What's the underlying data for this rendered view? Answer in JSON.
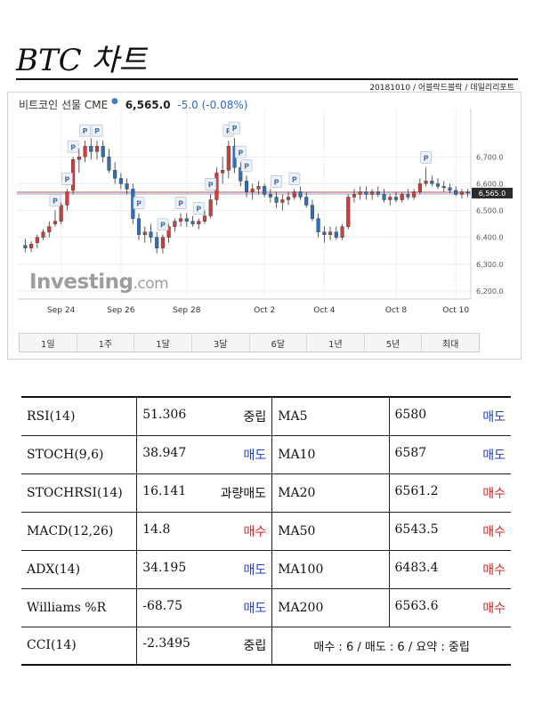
{
  "header": {
    "title": "BTC 차트",
    "meta": "20181010 / 어블락드블락 / 데일리리포트"
  },
  "chart_header": {
    "name": "비트코인 선물 CME",
    "price": "6,565.0",
    "change": "-5.0  (-0.08%)"
  },
  "logo": {
    "main": "Investing",
    "suffix": ".com"
  },
  "colors": {
    "up": "#3cb34a",
    "down": "#cc2222",
    "up_candle": "#d33b3b",
    "down_candle": "#2e6fb7",
    "sell": "#1f3fd0",
    "buy": "#e02424"
  },
  "chart_data": {
    "type": "candlestick",
    "title": "비트코인 선물 CME",
    "x_tick_labels": [
      "Sep 24",
      "Sep 26",
      "Sep 28",
      "Oct 2",
      "Oct 4",
      "Oct 8",
      "Oct 10"
    ],
    "y_ticks": [
      6200,
      6300,
      6400,
      6500,
      6600,
      6700
    ],
    "y_tick_labels": [
      "6,200.0",
      "6,300.0",
      "6,400.0",
      "6,500.0",
      "6,600.0",
      "6,700.0"
    ],
    "ylim": [
      6170,
      6880
    ],
    "last_price_label": "6,565.0",
    "last_price": 6565,
    "candles": [
      [
        6370,
        6395,
        6345,
        6360
      ],
      [
        6360,
        6385,
        6345,
        6375
      ],
      [
        6380,
        6410,
        6360,
        6400
      ],
      [
        6400,
        6430,
        6390,
        6420
      ],
      [
        6420,
        6460,
        6400,
        6440
      ],
      [
        6450,
        6500,
        6440,
        6460
      ],
      [
        6460,
        6530,
        6450,
        6520
      ],
      [
        6520,
        6580,
        6500,
        6570
      ],
      [
        6575,
        6700,
        6560,
        6690
      ],
      [
        6690,
        6730,
        6640,
        6700
      ],
      [
        6700,
        6760,
        6680,
        6740
      ],
      [
        6740,
        6770,
        6690,
        6720
      ],
      [
        6720,
        6760,
        6690,
        6740
      ],
      [
        6740,
        6760,
        6680,
        6700
      ],
      [
        6700,
        6730,
        6640,
        6650
      ],
      [
        6650,
        6680,
        6600,
        6620
      ],
      [
        6620,
        6640,
        6580,
        6600
      ],
      [
        6600,
        6620,
        6560,
        6580
      ],
      [
        6580,
        6600,
        6450,
        6470
      ],
      [
        6470,
        6490,
        6390,
        6410
      ],
      [
        6410,
        6440,
        6380,
        6420
      ],
      [
        6420,
        6450,
        6380,
        6400
      ],
      [
        6400,
        6420,
        6340,
        6360
      ],
      [
        6360,
        6410,
        6340,
        6400
      ],
      [
        6400,
        6450,
        6380,
        6440
      ],
      [
        6440,
        6470,
        6420,
        6460
      ],
      [
        6460,
        6490,
        6440,
        6470
      ],
      [
        6470,
        6490,
        6440,
        6460
      ],
      [
        6460,
        6480,
        6440,
        6450
      ],
      [
        6450,
        6470,
        6430,
        6460
      ],
      [
        6460,
        6500,
        6450,
        6480
      ],
      [
        6480,
        6560,
        6470,
        6540
      ],
      [
        6540,
        6660,
        6520,
        6640
      ],
      [
        6640,
        6700,
        6600,
        6650
      ],
      [
        6650,
        6760,
        6620,
        6740
      ],
      [
        6740,
        6770,
        6640,
        6660
      ],
      [
        6660,
        6680,
        6590,
        6610
      ],
      [
        6610,
        6630,
        6550,
        6570
      ],
      [
        6570,
        6600,
        6540,
        6580
      ],
      [
        6580,
        6610,
        6560,
        6590
      ],
      [
        6590,
        6600,
        6550,
        6560
      ],
      [
        6560,
        6580,
        6530,
        6550
      ],
      [
        6550,
        6570,
        6510,
        6530
      ],
      [
        6530,
        6560,
        6500,
        6540
      ],
      [
        6540,
        6570,
        6520,
        6550
      ],
      [
        6550,
        6580,
        6540,
        6570
      ],
      [
        6570,
        6590,
        6540,
        6550
      ],
      [
        6550,
        6570,
        6510,
        6520
      ],
      [
        6520,
        6540,
        6460,
        6470
      ],
      [
        6470,
        6490,
        6400,
        6420
      ],
      [
        6420,
        6440,
        6380,
        6410
      ],
      [
        6410,
        6440,
        6390,
        6420
      ],
      [
        6420,
        6440,
        6390,
        6400
      ],
      [
        6400,
        6450,
        6390,
        6440
      ],
      [
        6440,
        6560,
        6430,
        6550
      ],
      [
        6550,
        6580,
        6530,
        6560
      ],
      [
        6560,
        6590,
        6540,
        6570
      ],
      [
        6570,
        6590,
        6540,
        6560
      ],
      [
        6560,
        6580,
        6540,
        6570
      ],
      [
        6570,
        6590,
        6550,
        6560
      ],
      [
        6560,
        6580,
        6530,
        6540
      ],
      [
        6540,
        6560,
        6520,
        6550
      ],
      [
        6550,
        6570,
        6530,
        6540
      ],
      [
        6540,
        6570,
        6530,
        6560
      ],
      [
        6560,
        6580,
        6540,
        6550
      ],
      [
        6550,
        6580,
        6540,
        6570
      ],
      [
        6570,
        6620,
        6560,
        6600
      ],
      [
        6600,
        6660,
        6590,
        6610
      ],
      [
        6610,
        6630,
        6590,
        6600
      ],
      [
        6600,
        6620,
        6580,
        6590
      ],
      [
        6590,
        6610,
        6570,
        6585
      ],
      [
        6585,
        6600,
        6565,
        6575
      ],
      [
        6575,
        6590,
        6555,
        6560
      ],
      [
        6560,
        6580,
        6545,
        6570
      ],
      [
        6570,
        6580,
        6550,
        6565
      ]
    ],
    "markers": [
      {
        "i": 5,
        "label": "P"
      },
      {
        "i": 7,
        "label": "P"
      },
      {
        "i": 8,
        "label": "P"
      },
      {
        "i": 10,
        "label": "P"
      },
      {
        "i": 12,
        "label": "P"
      },
      {
        "i": 19,
        "label": "P"
      },
      {
        "i": 23,
        "label": "P"
      },
      {
        "i": 26,
        "label": "P"
      },
      {
        "i": 29,
        "label": "P"
      },
      {
        "i": 31,
        "label": "P"
      },
      {
        "i": 34,
        "label": "P"
      },
      {
        "i": 35,
        "label": "P"
      },
      {
        "i": 36,
        "label": "P"
      },
      {
        "i": 37,
        "label": "P"
      },
      {
        "i": 42,
        "label": "P"
      },
      {
        "i": 45,
        "label": "P"
      },
      {
        "i": 67,
        "label": "P"
      }
    ],
    "grid": true
  },
  "ranges": [
    "1일",
    "1주",
    "1달",
    "3달",
    "6달",
    "1년",
    "5년",
    "최대"
  ],
  "indicators": [
    {
      "name": "RSI(14)",
      "value": "51.306",
      "signal": "중립",
      "cls": "neutral",
      "name2": "MA5",
      "value2": "6580",
      "signal2": "매도",
      "cls2": "sell"
    },
    {
      "name": "STOCH(9,6)",
      "value": "38.947",
      "signal": "매도",
      "cls": "sell",
      "name2": "MA10",
      "value2": "6587",
      "signal2": "매도",
      "cls2": "sell"
    },
    {
      "name": "STOCHRSI(14)",
      "value": "16.141",
      "signal": "과량매도",
      "cls": "neutral",
      "name2": "MA20",
      "value2": "6561.2",
      "signal2": "매수",
      "cls2": "buy"
    },
    {
      "name": "MACD(12,26)",
      "value": "14.8",
      "signal": "매수",
      "cls": "buy",
      "name2": "MA50",
      "value2": "6543.5",
      "signal2": "매수",
      "cls2": "buy"
    },
    {
      "name": "ADX(14)",
      "value": "34.195",
      "signal": "매도",
      "cls": "sell",
      "name2": "MA100",
      "value2": "6483.4",
      "signal2": "매수",
      "cls2": "buy"
    },
    {
      "name": "Williams %R",
      "value": "-68.75",
      "signal": "매도",
      "cls": "sell",
      "name2": "MA200",
      "value2": "6563.6",
      "signal2": "매수",
      "cls2": "buy"
    }
  ],
  "last_row": {
    "name": "CCI(14)",
    "value": "-2.3495",
    "signal": "중립",
    "summary": "매수 : 6 / 매도 : 6 / 요약 : 중립"
  }
}
